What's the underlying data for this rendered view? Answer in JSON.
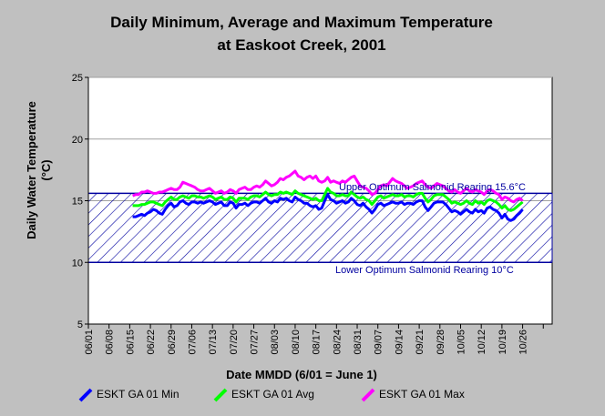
{
  "chart_data": {
    "type": "line",
    "title_lines": [
      "Daily Minimum, Average and Maximum Temperature",
      "at Easkoot Creek, 2001"
    ],
    "xlabel": "Date MMDD (6/01 = June 1)",
    "ylabel_lines": [
      "Daily Water Temperature",
      "(°C)"
    ],
    "ylim": [
      5,
      25
    ],
    "yticks": [
      5,
      10,
      15,
      20,
      25
    ],
    "ytick_labels": [
      "5",
      "10",
      "15",
      "20",
      "25"
    ],
    "xlim": [
      0,
      157
    ],
    "xtick_days": [
      0,
      7,
      14,
      21,
      28,
      35,
      42,
      49,
      56,
      63,
      70,
      77,
      84,
      91,
      98,
      105,
      112,
      119,
      126,
      133,
      140,
      147,
      154
    ],
    "xtick_labels": [
      "06/01",
      "06/08",
      "06/15",
      "06/22",
      "06/29",
      "07/06",
      "07/13",
      "07/20",
      "07/27",
      "08/03",
      "08/10",
      "08/17",
      "08/24",
      "08/31",
      "09/07",
      "09/14",
      "09/21",
      "09/28",
      "10/05",
      "10/12",
      "10/19",
      "10/26",
      ""
    ],
    "optimum_band": {
      "upper": 15.6,
      "lower": 10,
      "upper_label": "Upper Optimum Salmonid Rearing 15.6°C",
      "lower_label": "Lower Optimum Salmonid Rearing 10°C",
      "color": "#0000a0"
    },
    "x_start_day": 15,
    "series": [
      {
        "name": "ESKT GA 01 Min",
        "color": "#0000ff",
        "values": [
          13.7,
          13.7,
          13.8,
          13.9,
          13.8,
          14.0,
          14.1,
          14.3,
          14.2,
          14.0,
          13.9,
          14.3,
          14.6,
          14.8,
          14.5,
          14.6,
          14.9,
          15.0,
          14.8,
          14.7,
          14.9,
          14.9,
          14.8,
          14.9,
          14.8,
          14.9,
          15.0,
          14.9,
          14.7,
          14.8,
          14.9,
          14.6,
          14.6,
          14.9,
          14.8,
          14.4,
          14.7,
          14.7,
          14.8,
          14.6,
          14.8,
          14.9,
          14.9,
          14.8,
          15.0,
          15.2,
          14.9,
          14.8,
          15.0,
          14.9,
          15.2,
          15.1,
          15.2,
          15.0,
          14.9,
          15.3,
          15.1,
          15.0,
          14.8,
          14.8,
          14.6,
          14.5,
          14.6,
          14.3,
          14.4,
          15.0,
          15.5,
          15.1,
          15.0,
          14.8,
          14.9,
          15.0,
          14.8,
          14.9,
          15.2,
          15.0,
          14.7,
          14.6,
          14.8,
          14.5,
          14.3,
          14.0,
          14.3,
          14.7,
          14.8,
          14.6,
          14.7,
          14.8,
          14.9,
          14.8,
          14.8,
          14.9,
          14.7,
          14.8,
          14.8,
          14.7,
          14.9,
          15.0,
          15.0,
          14.5,
          14.2,
          14.5,
          14.8,
          14.9,
          14.9,
          14.9,
          14.7,
          14.4,
          14.1,
          14.2,
          14.1,
          13.9,
          14.1,
          14.3,
          14.1,
          14.0,
          14.3,
          14.1,
          14.2,
          14.0,
          14.4,
          14.5,
          14.3,
          14.2,
          14.0,
          13.6,
          13.9,
          13.5,
          13.4,
          13.5,
          13.8,
          14.0,
          14.3
        ]
      },
      {
        "name": "ESKT GA 01 Avg",
        "color": "#00ff00",
        "values": [
          14.6,
          14.6,
          14.6,
          14.7,
          14.7,
          14.8,
          14.9,
          14.9,
          14.8,
          14.7,
          14.6,
          14.9,
          15.1,
          15.3,
          15.1,
          15.1,
          15.3,
          15.4,
          15.3,
          15.2,
          15.4,
          15.4,
          15.3,
          15.3,
          15.2,
          15.3,
          15.4,
          15.3,
          15.1,
          15.2,
          15.3,
          15.1,
          15.1,
          15.3,
          15.2,
          14.9,
          15.2,
          15.2,
          15.2,
          15.1,
          15.3,
          15.4,
          15.4,
          15.3,
          15.5,
          15.7,
          15.5,
          15.4,
          15.5,
          15.5,
          15.7,
          15.6,
          15.7,
          15.6,
          15.5,
          15.8,
          15.6,
          15.5,
          15.4,
          15.3,
          15.2,
          15.1,
          15.2,
          15.0,
          15.0,
          15.5,
          16.0,
          15.7,
          15.6,
          15.4,
          15.4,
          15.5,
          15.4,
          15.4,
          15.7,
          15.5,
          15.3,
          15.2,
          15.3,
          15.1,
          15.0,
          14.7,
          15.0,
          15.3,
          15.4,
          15.2,
          15.3,
          15.4,
          15.5,
          15.4,
          15.4,
          15.5,
          15.3,
          15.4,
          15.4,
          15.3,
          15.5,
          15.6,
          15.6,
          15.2,
          14.9,
          15.1,
          15.4,
          15.5,
          15.5,
          15.5,
          15.3,
          15.1,
          14.8,
          14.9,
          14.8,
          14.7,
          14.8,
          15.0,
          14.8,
          14.7,
          15.0,
          14.8,
          14.9,
          14.7,
          15.0,
          15.1,
          15.0,
          14.9,
          14.7,
          14.4,
          14.6,
          14.3,
          14.2,
          14.3,
          14.5,
          14.7,
          14.9
        ]
      },
      {
        "name": "ESKT GA 01 Max",
        "color": "#ff00ff",
        "values": [
          15.4,
          15.5,
          15.5,
          15.7,
          15.7,
          15.8,
          15.7,
          15.6,
          15.6,
          15.7,
          15.7,
          15.8,
          15.9,
          16.0,
          15.9,
          15.9,
          16.1,
          16.5,
          16.4,
          16.3,
          16.2,
          16.1,
          15.9,
          15.8,
          15.8,
          15.9,
          16.0,
          15.8,
          15.6,
          15.7,
          15.8,
          15.6,
          15.7,
          15.9,
          15.8,
          15.6,
          15.9,
          16.0,
          16.1,
          15.9,
          15.9,
          16.1,
          16.2,
          16.1,
          16.3,
          16.6,
          16.4,
          16.2,
          16.3,
          16.5,
          16.8,
          16.7,
          16.9,
          17.0,
          17.2,
          17.4,
          17.0,
          16.9,
          16.7,
          16.9,
          17.0,
          16.8,
          17.0,
          16.6,
          16.5,
          16.6,
          16.9,
          16.5,
          16.6,
          16.5,
          16.4,
          16.6,
          16.5,
          16.7,
          16.9,
          17.0,
          16.6,
          16.2,
          16.1,
          16.0,
          15.8,
          15.5,
          15.6,
          15.9,
          16.2,
          16.3,
          16.2,
          16.5,
          16.8,
          16.6,
          16.5,
          16.4,
          16.2,
          16.0,
          16.1,
          16.2,
          16.4,
          16.5,
          16.6,
          16.3,
          16.1,
          16.0,
          16.2,
          16.4,
          16.3,
          16.2,
          16.0,
          15.8,
          15.7,
          15.9,
          15.7,
          15.6,
          15.8,
          16.0,
          15.8,
          15.7,
          15.9,
          15.8,
          15.7,
          15.5,
          15.8,
          15.9,
          15.8,
          15.6,
          15.5,
          15.1,
          15.3,
          15.2,
          15.0,
          14.9,
          15.1,
          15.2,
          15.0
        ]
      }
    ],
    "legend_position": "bottom",
    "grid": true
  }
}
